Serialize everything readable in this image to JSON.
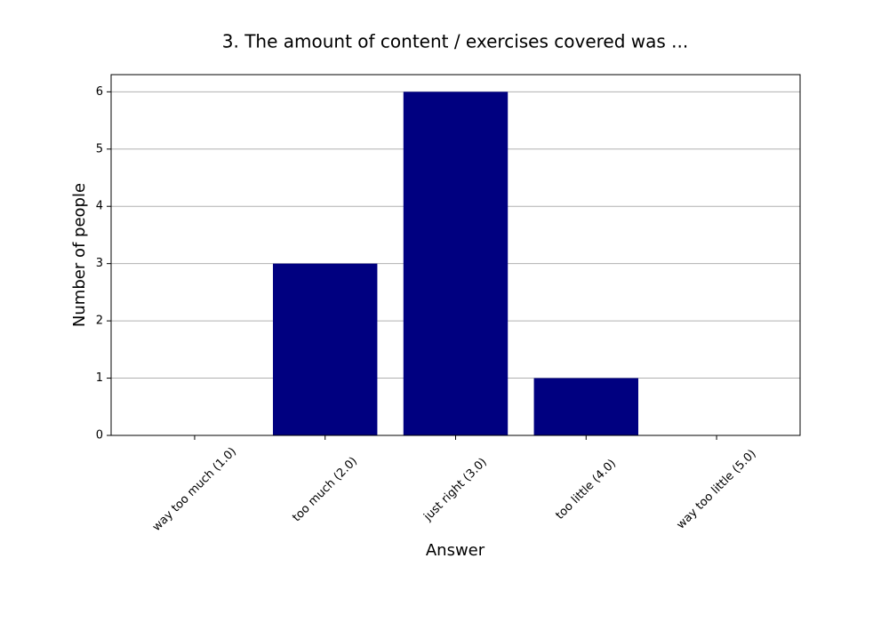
{
  "chart_data": {
    "type": "bar",
    "title": "3. The amount of content / exercises covered was ...",
    "x_label": "Answer",
    "y_label": "Number of people",
    "categories": [
      "way too much (1.0)",
      "too much (2.0)",
      "just right (3.0)",
      "too little (4.0)",
      "way too little (5.0)"
    ],
    "values": [
      0,
      3,
      6,
      1,
      0
    ],
    "color": "#000080",
    "ylim": [
      0,
      6.3
    ],
    "yticks": [
      0,
      1,
      2,
      3,
      4,
      5,
      6
    ],
    "grid": true
  }
}
